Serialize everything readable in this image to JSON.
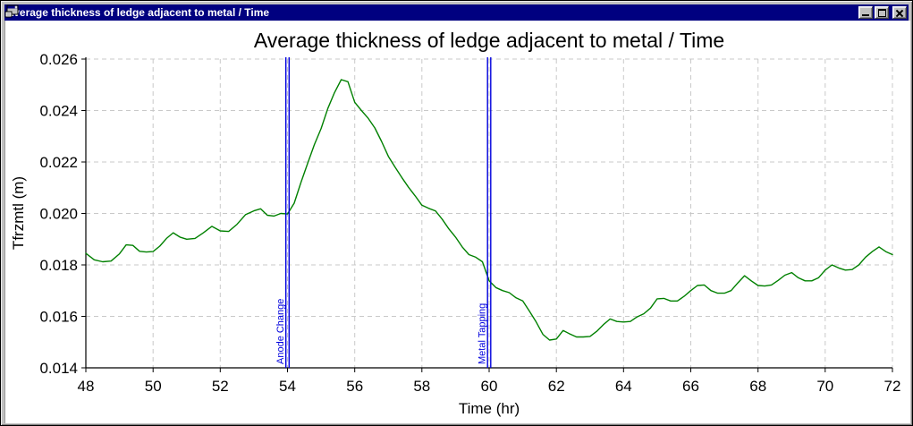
{
  "window": {
    "title": "Average thickness of ledge adjacent to metal / Time",
    "titlebar_color": "#000080",
    "controls": [
      {
        "name": "minimize"
      },
      {
        "name": "maximize"
      },
      {
        "name": "close"
      }
    ]
  },
  "chart_data": {
    "type": "line",
    "title": "Average thickness of ledge adjacent to metal / Time",
    "xlabel": "Time (hr)",
    "ylabel": "Tfrzmtl (m)",
    "xlim": [
      48,
      72
    ],
    "ylim": [
      0.014,
      0.026
    ],
    "grid": "dashed",
    "legend": "none",
    "x_ticks": [
      {
        "value": 48,
        "label": "48"
      },
      {
        "value": 50,
        "label": "50"
      },
      {
        "value": 52,
        "label": "52"
      },
      {
        "value": 54,
        "label": "54"
      },
      {
        "value": 56,
        "label": "56"
      },
      {
        "value": 58,
        "label": "58"
      },
      {
        "value": 60,
        "label": "60"
      },
      {
        "value": 62,
        "label": "62"
      },
      {
        "value": 64,
        "label": "64"
      },
      {
        "value": 66,
        "label": "66"
      },
      {
        "value": 68,
        "label": "68"
      },
      {
        "value": 70,
        "label": "70"
      },
      {
        "value": 72,
        "label": "72"
      }
    ],
    "y_ticks": [
      {
        "value": 0.014,
        "label": "0.014"
      },
      {
        "value": 0.016,
        "label": "0.016"
      },
      {
        "value": 0.018,
        "label": "0.018"
      },
      {
        "value": 0.02,
        "label": "0.020"
      },
      {
        "value": 0.022,
        "label": "0.022"
      },
      {
        "value": 0.024,
        "label": "0.024"
      },
      {
        "value": 0.026,
        "label": "0.026"
      }
    ],
    "annotations": [
      {
        "label": "Anode Change",
        "x": 54,
        "color": "#0000dd",
        "style": "double-vertical-line"
      },
      {
        "label": "Metal Tapping",
        "x": 60,
        "color": "#0000dd",
        "style": "double-vertical-line"
      }
    ],
    "series": [
      {
        "name": "Tfrzmtl",
        "color": "#008000",
        "x": [
          48.0,
          48.25,
          48.5,
          48.75,
          49.0,
          49.2,
          49.4,
          49.6,
          49.8,
          50.0,
          50.2,
          50.4,
          50.6,
          50.8,
          51.0,
          51.25,
          51.5,
          51.75,
          52.0,
          52.25,
          52.5,
          52.75,
          53.0,
          53.2,
          53.4,
          53.6,
          53.8,
          54.0,
          54.2,
          54.4,
          54.6,
          54.8,
          55.0,
          55.2,
          55.4,
          55.6,
          55.8,
          56.0,
          56.2,
          56.4,
          56.6,
          56.8,
          57.0,
          57.2,
          57.4,
          57.6,
          57.8,
          58.0,
          58.2,
          58.4,
          58.6,
          58.8,
          59.0,
          59.2,
          59.4,
          59.6,
          59.8,
          60.0,
          60.2,
          60.4,
          60.6,
          60.8,
          61.0,
          61.2,
          61.4,
          61.6,
          61.8,
          62.0,
          62.2,
          62.4,
          62.6,
          62.8,
          63.0,
          63.2,
          63.4,
          63.6,
          63.8,
          64.0,
          64.2,
          64.4,
          64.6,
          64.8,
          65.0,
          65.2,
          65.4,
          65.6,
          65.8,
          66.0,
          66.2,
          66.4,
          66.6,
          66.8,
          67.0,
          67.2,
          67.4,
          67.6,
          67.8,
          68.0,
          68.2,
          68.4,
          68.6,
          68.8,
          69.0,
          69.2,
          69.4,
          69.6,
          69.8,
          70.0,
          70.2,
          70.4,
          70.6,
          70.8,
          71.0,
          71.2,
          71.4,
          71.6,
          71.8,
          72.0
        ],
        "y": [
          0.01845,
          0.0182,
          0.01812,
          0.01815,
          0.01843,
          0.01878,
          0.01876,
          0.01853,
          0.0185,
          0.01852,
          0.01873,
          0.01903,
          0.01925,
          0.01908,
          0.019,
          0.01903,
          0.01925,
          0.0195,
          0.01932,
          0.0193,
          0.01958,
          0.01995,
          0.0201,
          0.02018,
          0.01993,
          0.0199,
          0.02,
          0.01998,
          0.0204,
          0.0212,
          0.02195,
          0.02268,
          0.0233,
          0.02408,
          0.0247,
          0.0252,
          0.02512,
          0.02432,
          0.024,
          0.0237,
          0.02332,
          0.0228,
          0.02222,
          0.0218,
          0.0214,
          0.02102,
          0.02068,
          0.02032,
          0.0202,
          0.0201,
          0.01978,
          0.0194,
          0.01908,
          0.0187,
          0.0184,
          0.0183,
          0.01812,
          0.01738,
          0.01712,
          0.017,
          0.01692,
          0.01672,
          0.0166,
          0.0162,
          0.01578,
          0.0153,
          0.01508,
          0.01512,
          0.01545,
          0.01532,
          0.0152,
          0.0152,
          0.01522,
          0.01542,
          0.01568,
          0.0159,
          0.0158,
          0.01578,
          0.0158,
          0.01598,
          0.0161,
          0.01632,
          0.01668,
          0.0167,
          0.0166,
          0.0166,
          0.01678,
          0.017,
          0.0172,
          0.01722,
          0.017,
          0.0169,
          0.0169,
          0.017,
          0.0173,
          0.01758,
          0.01738,
          0.0172,
          0.01718,
          0.01722,
          0.0174,
          0.0176,
          0.0177,
          0.0175,
          0.01738,
          0.01738,
          0.0175,
          0.0178,
          0.018,
          0.01788,
          0.0178,
          0.01782,
          0.018,
          0.0183,
          0.01852,
          0.0187,
          0.01852,
          0.0184
        ]
      }
    ]
  }
}
